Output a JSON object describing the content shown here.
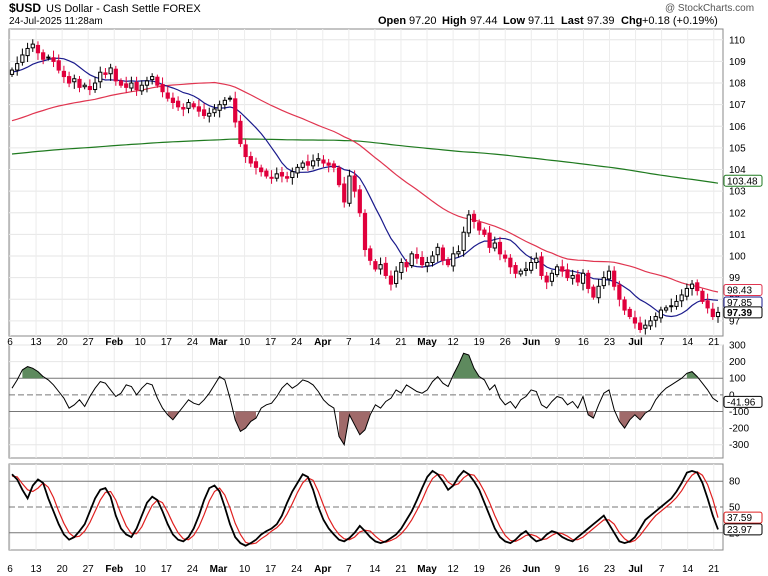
{
  "header": {
    "symbol": "$USD",
    "name": "US Dollar - Cash Settle FOREX",
    "datetime": "24-Jul-2025 11:28am",
    "watermark": "@ StockCharts.com",
    "quote": {
      "open_label": "Open",
      "open": "97.20",
      "high_label": "High",
      "high": "97.44",
      "low_label": "Low",
      "low": "97.11",
      "last_label": "Last",
      "last": "97.39",
      "chg_label": "Chg",
      "chg": "+0.18 (+0.19%)"
    }
  },
  "colors": {
    "up": "#000000",
    "down": "#e0003c",
    "ma_short": "#1a1a8c",
    "ma_mid": "#e03550",
    "ma_long": "#1f7a1f",
    "cci_pos": "#5e8a5e",
    "cci_neg": "#a06a6a",
    "stoch_k": "#000000",
    "stoch_d": "#e02020"
  },
  "chart_data": [
    {
      "type": "candlestick",
      "title": "$USD US Dollar - Cash Settle FOREX",
      "x_labels": [
        "6",
        "13",
        "20",
        "27",
        "Feb",
        "10",
        "17",
        "24",
        "Mar",
        "10",
        "17",
        "24",
        "Apr",
        "7",
        "14",
        "21",
        "May",
        "12",
        "19",
        "26",
        "Jun",
        "9",
        "16",
        "23",
        "Jul",
        "7",
        "14",
        "21"
      ],
      "ylim": [
        96.3,
        110.5
      ],
      "y_ticks": [
        97,
        98,
        99,
        100,
        101,
        102,
        103,
        104,
        105,
        106,
        107,
        108,
        109,
        110
      ],
      "grid": true,
      "close": [
        108.6,
        108.9,
        109.3,
        109.6,
        109.8,
        109.4,
        109.1,
        109.2,
        109.0,
        108.6,
        108.3,
        108.0,
        108.2,
        107.8,
        107.9,
        107.7,
        108.0,
        108.5,
        108.4,
        108.7,
        108.1,
        107.9,
        107.8,
        108.0,
        107.7,
        107.9,
        108.1,
        108.3,
        107.9,
        107.6,
        107.3,
        107.1,
        106.9,
        106.8,
        107.1,
        106.9,
        106.7,
        106.5,
        106.6,
        106.8,
        107.0,
        107.2,
        107.3,
        106.2,
        105.2,
        104.6,
        104.3,
        104.1,
        103.9,
        103.7,
        103.6,
        103.8,
        103.7,
        103.6,
        103.9,
        104.1,
        104.3,
        104.2,
        104.4,
        104.5,
        104.3,
        104.2,
        104.1,
        103.3,
        102.5,
        103.7,
        103.0,
        102.0,
        100.3,
        99.8,
        99.4,
        99.6,
        99.1,
        98.7,
        99.3,
        99.7,
        99.5,
        100.1,
        99.9,
        99.6,
        99.7,
        100.0,
        100.4,
        99.8,
        99.6,
        100.1,
        100.2,
        101.1,
        101.9,
        101.6,
        101.2,
        101.0,
        100.4,
        100.6,
        100.1,
        99.9,
        99.5,
        99.2,
        99.3,
        99.4,
        99.7,
        99.9,
        99.1,
        98.8,
        99.2,
        99.5,
        99.3,
        99.0,
        99.1,
        98.8,
        99.2,
        98.5,
        98.1,
        98.6,
        99.0,
        99.3,
        98.6,
        98.0,
        97.5,
        97.2,
        96.9,
        96.6,
        96.8,
        97.0,
        97.2,
        97.5,
        97.6,
        97.7,
        97.9,
        98.2,
        98.5,
        98.7,
        98.4,
        97.9,
        97.6,
        97.2,
        97.39
      ]
    },
    {
      "type": "line",
      "title": "CCI",
      "ylim": [
        -380,
        300
      ],
      "y_ticks": [
        300,
        200,
        100,
        0,
        -100,
        -200,
        -300
      ],
      "grid": true,
      "values": [
        40,
        90,
        150,
        170,
        160,
        140,
        110,
        90,
        60,
        20,
        -20,
        -80,
        -60,
        -30,
        -70,
        -10,
        40,
        80,
        70,
        30,
        -10,
        10,
        60,
        50,
        0,
        40,
        70,
        60,
        -20,
        -80,
        -120,
        -150,
        -110,
        -70,
        -30,
        -50,
        -60,
        -30,
        10,
        60,
        110,
        90,
        -20,
        -150,
        -220,
        -200,
        -160,
        -140,
        -80,
        -60,
        -50,
        -10,
        40,
        70,
        40,
        60,
        90,
        80,
        60,
        20,
        -30,
        -60,
        -80,
        -250,
        -300,
        -120,
        -180,
        -240,
        -210,
        -120,
        -60,
        -80,
        -40,
        -20,
        30,
        10,
        60,
        40,
        20,
        10,
        30,
        80,
        110,
        70,
        50,
        120,
        180,
        250,
        240,
        160,
        110,
        90,
        30,
        60,
        -20,
        -60,
        -40,
        -80,
        -30,
        -10,
        30,
        20,
        -60,
        -80,
        -40,
        -10,
        -20,
        -60,
        -40,
        -80,
        -10,
        -120,
        -140,
        -60,
        10,
        30,
        -90,
        -160,
        -200,
        -150,
        -120,
        -150,
        -110,
        -90,
        -30,
        10,
        40,
        60,
        80,
        100,
        130,
        140,
        110,
        70,
        30,
        -20,
        -41.96
      ]
    },
    {
      "type": "line",
      "title": "Stochastic",
      "ylim": [
        0,
        100
      ],
      "y_ticks": [
        80,
        50,
        20
      ],
      "grid": true,
      "series": [
        {
          "values": [
            88,
            82,
            70,
            60,
            75,
            82,
            78,
            60,
            45,
            30,
            18,
            12,
            15,
            22,
            30,
            45,
            60,
            70,
            72,
            62,
            40,
            25,
            18,
            15,
            25,
            40,
            55,
            62,
            58,
            45,
            30,
            18,
            12,
            10,
            15,
            25,
            40,
            58,
            72,
            75,
            68,
            50,
            30,
            15,
            8,
            5,
            8,
            12,
            18,
            22,
            25,
            30,
            40,
            55,
            68,
            78,
            88,
            85,
            70,
            50,
            35,
            25,
            18,
            12,
            10,
            14,
            20,
            28,
            22,
            15,
            10,
            8,
            10,
            14,
            18,
            25,
            35,
            45,
            58,
            72,
            85,
            92,
            88,
            80,
            70,
            75,
            85,
            92,
            88,
            80,
            70,
            55,
            40,
            25,
            15,
            10,
            8,
            12,
            18,
            22,
            15,
            10,
            12,
            18,
            22,
            20,
            15,
            12,
            10,
            15,
            20,
            25,
            30,
            35,
            40,
            30,
            20,
            10,
            8,
            10,
            15,
            25,
            35,
            40,
            45,
            50,
            55,
            60,
            68,
            78,
            90,
            92,
            90,
            78,
            60,
            40,
            23.97
          ]
        },
        {
          "values": [
            86,
            85,
            77,
            70,
            68,
            72,
            78,
            73,
            61,
            45,
            31,
            20,
            15,
            16,
            22,
            32,
            45,
            58,
            67,
            68,
            58,
            42,
            28,
            19,
            19,
            27,
            40,
            52,
            58,
            55,
            44,
            31,
            20,
            13,
            12,
            17,
            27,
            41,
            57,
            68,
            72,
            64,
            49,
            31,
            18,
            9,
            7,
            8,
            13,
            17,
            22,
            26,
            32,
            42,
            54,
            67,
            78,
            84,
            81,
            68,
            52,
            37,
            26,
            18,
            13,
            12,
            15,
            21,
            23,
            22,
            16,
            11,
            9,
            11,
            14,
            19,
            26,
            35,
            46,
            58,
            72,
            83,
            88,
            87,
            79,
            75,
            77,
            84,
            88,
            87,
            79,
            68,
            55,
            40,
            27,
            17,
            11,
            10,
            13,
            17,
            18,
            16,
            12,
            13,
            17,
            20,
            19,
            16,
            12,
            12,
            15,
            20,
            25,
            30,
            35,
            35,
            30,
            20,
            13,
            9,
            11,
            17,
            25,
            33,
            40,
            45,
            50,
            55,
            61,
            69,
            79,
            87,
            91,
            87,
            76,
            59,
            37.59
          ]
        }
      ]
    }
  ],
  "tags": {
    "ma_long": "103.48",
    "ma_mid": "98.43",
    "ma_short": "97.85",
    "last": "97.39",
    "cci": "-41.96",
    "stoch_d": "37.59",
    "stoch_k": "23.97"
  }
}
